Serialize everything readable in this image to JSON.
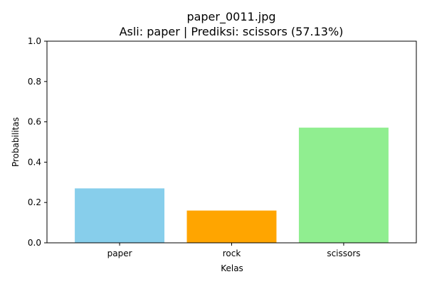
{
  "chart_data": {
    "type": "bar",
    "title": "paper_0011.jpg",
    "subtitle": "Asli: paper | Prediksi: scissors (57.13%)",
    "xlabel": "Kelas",
    "ylabel": "Probabilitas",
    "categories": [
      "paper",
      "rock",
      "scissors"
    ],
    "values": [
      0.27,
      0.16,
      0.5713
    ],
    "colors": [
      "#87ceeb",
      "#ffa500",
      "#90ee90"
    ],
    "ylim": [
      0,
      1.0
    ],
    "yticks": [
      "0.0",
      "0.2",
      "0.4",
      "0.6",
      "0.8",
      "1.0"
    ],
    "grid": false,
    "legend": "none"
  }
}
